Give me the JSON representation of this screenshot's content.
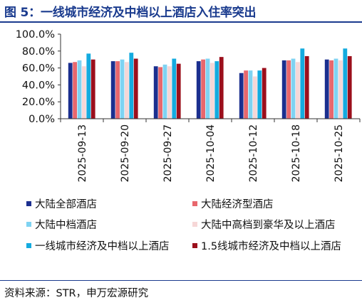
{
  "title": "图 5：一线城市经济及中档以上酒店入住率突出",
  "source": "资料来源：STR，申万宏源研究",
  "chart_data": {
    "type": "bar",
    "title": "图 5：一线城市经济及中档以上酒店入住率突出",
    "categories": [
      "2025-09-13",
      "2025-09-20",
      "2025-09-27",
      "2025-10-04",
      "2025-10-12",
      "2025-10-18",
      "2025-10-25"
    ],
    "y_ticks": [
      "0.0%",
      "20.0%",
      "40.0%",
      "60.0%",
      "80.0%",
      "100.0%"
    ],
    "ylim": [
      0,
      100
    ],
    "y_unit": "%",
    "grid": false,
    "legend_position": "bottom",
    "series": [
      {
        "name": "大陆全部酒店",
        "color": "#1b2f8f",
        "values": [
          66,
          68,
          62,
          68,
          54,
          69,
          70
        ]
      },
      {
        "name": "大陆经济型酒店",
        "color": "#e8676d",
        "values": [
          67,
          68,
          61,
          70,
          57,
          69,
          69
        ]
      },
      {
        "name": "大陆中档酒店",
        "color": "#7fd3f2",
        "values": [
          69,
          70,
          64,
          71,
          57,
          71,
          71
        ]
      },
      {
        "name": "大陆中高档到豪华及以上酒店",
        "color": "#f6d7d7",
        "values": [
          62,
          67,
          62,
          66,
          50,
          67,
          69
        ]
      },
      {
        "name": "一线城市经济及中档以上酒店",
        "color": "#14abdf",
        "values": [
          77,
          78,
          71,
          68,
          57,
          83,
          83
        ]
      },
      {
        "name": "1.5线城市经济及中档以上酒店",
        "color": "#9b0f1c",
        "values": [
          70,
          71,
          65,
          73,
          60,
          74,
          74
        ]
      }
    ]
  }
}
